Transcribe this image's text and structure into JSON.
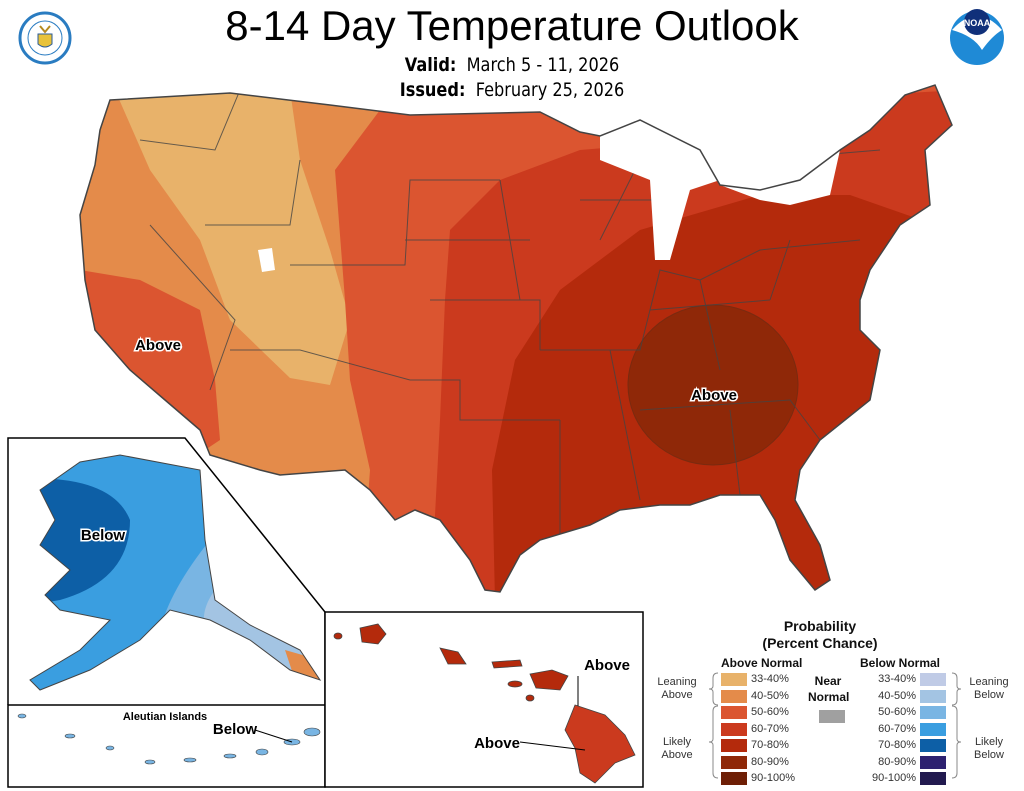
{
  "header": {
    "title": "8-14 Day Temperature Outlook",
    "valid_label": "Valid:",
    "valid_value": "March 5 - 11, 2026",
    "issued_label": "Issued:",
    "issued_value": "February 25, 2026"
  },
  "logos": {
    "left": "Department of Commerce seal",
    "right": "NOAA"
  },
  "map_labels": {
    "west": "Above",
    "east": "Above",
    "alaska": "Below",
    "aleutian_title": "Aleutian Islands",
    "aleutian": "Below",
    "hawaii_north": "Above",
    "hawaii_south": "Above"
  },
  "legend": {
    "title_line1": "Probability",
    "title_line2": "(Percent Chance)",
    "above_header": "Above Normal",
    "below_header": "Below Normal",
    "near_line1": "Near",
    "near_line2": "Normal",
    "near_color": "#a0a0a0",
    "leaning_above": [
      "Leaning",
      "Above"
    ],
    "likely_above": [
      "Likely",
      "Above"
    ],
    "leaning_below": [
      "Leaning",
      "Below"
    ],
    "likely_below": [
      "Likely",
      "Below"
    ],
    "above": [
      {
        "range": "33-40%",
        "color": "#e8b26a"
      },
      {
        "range": "40-50%",
        "color": "#e48b4a"
      },
      {
        "range": "50-60%",
        "color": "#db5530"
      },
      {
        "range": "60-70%",
        "color": "#cb3a1e"
      },
      {
        "range": "70-80%",
        "color": "#b42a0c"
      },
      {
        "range": "80-90%",
        "color": "#8f2808"
      },
      {
        "range": "90-100%",
        "color": "#6e1f06"
      }
    ],
    "below": [
      {
        "range": "33-40%",
        "color": "#c0cbe6"
      },
      {
        "range": "40-50%",
        "color": "#a3c4e3"
      },
      {
        "range": "50-60%",
        "color": "#79b5e3"
      },
      {
        "range": "60-70%",
        "color": "#3a9ee0"
      },
      {
        "range": "70-80%",
        "color": "#0d5fa6"
      },
      {
        "range": "80-90%",
        "color": "#2d2170"
      },
      {
        "range": "90-100%",
        "color": "#221a4f"
      }
    ]
  }
}
